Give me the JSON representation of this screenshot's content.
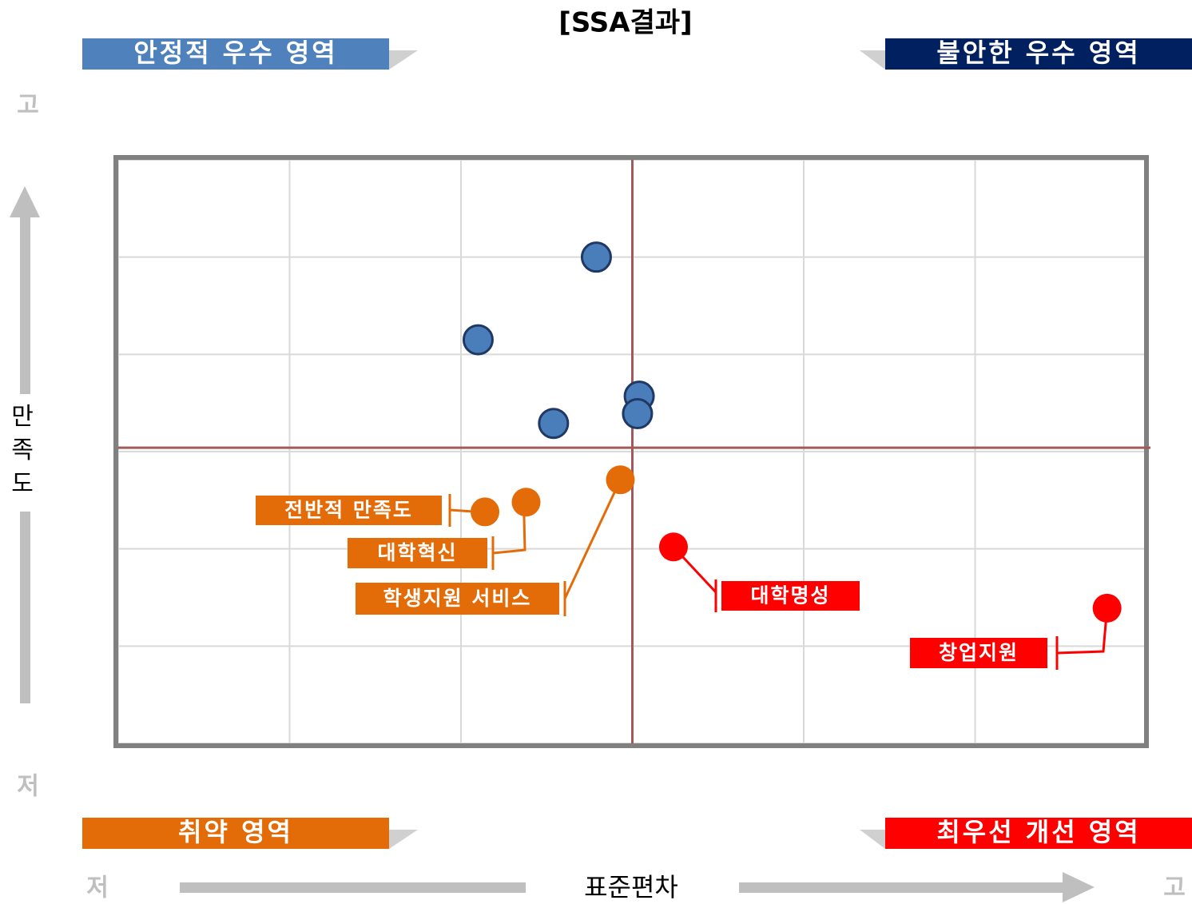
{
  "chart_data": {
    "type": "scatter",
    "title": "[SSA결과]",
    "x_label": "표준편차",
    "y_label": "만족도",
    "x_low": "저",
    "x_high": "고",
    "y_low": "저",
    "y_high": "고",
    "quadrants": {
      "top_left": {
        "text": "안정적 우수 영역",
        "color": "#4f81bd"
      },
      "top_right": {
        "text": "불안한 우수 영역",
        "color": "#002060"
      },
      "bottom_left": {
        "text": "취약 영역",
        "color": "#e36c09"
      },
      "bottom_right": {
        "text": "최우선 개선 영역",
        "color": "#ff0000"
      }
    },
    "xlim": [
      0,
      6
    ],
    "ylim": [
      0,
      6
    ],
    "xticks": [
      0,
      1,
      2,
      3,
      4,
      5,
      6
    ],
    "yticks": [
      0,
      1,
      2,
      3,
      4,
      5,
      6
    ],
    "grid": true,
    "reference_lines": {
      "x": 3.0,
      "y": 3.04,
      "color": "#a05a5a"
    },
    "series": [
      {
        "color": "#4a7ebb",
        "x": [
          2.79,
          2.1,
          3.04,
          3.03,
          2.54
        ],
        "y": [
          5.0,
          4.15,
          3.57,
          3.39,
          3.29
        ]
      },
      {
        "color": "#e36c09",
        "x": [
          2.14,
          2.38,
          2.93
        ],
        "y": [
          2.38,
          2.48,
          2.71
        ],
        "labels": [
          "전반적 만족도",
          "대학혁신",
          "학생지원 서비스"
        ]
      },
      {
        "color": "#ff0000",
        "x": [
          3.24,
          5.77
        ],
        "y": [
          2.02,
          1.39
        ],
        "labels": [
          "대학명성",
          "창업지원"
        ]
      }
    ]
  }
}
